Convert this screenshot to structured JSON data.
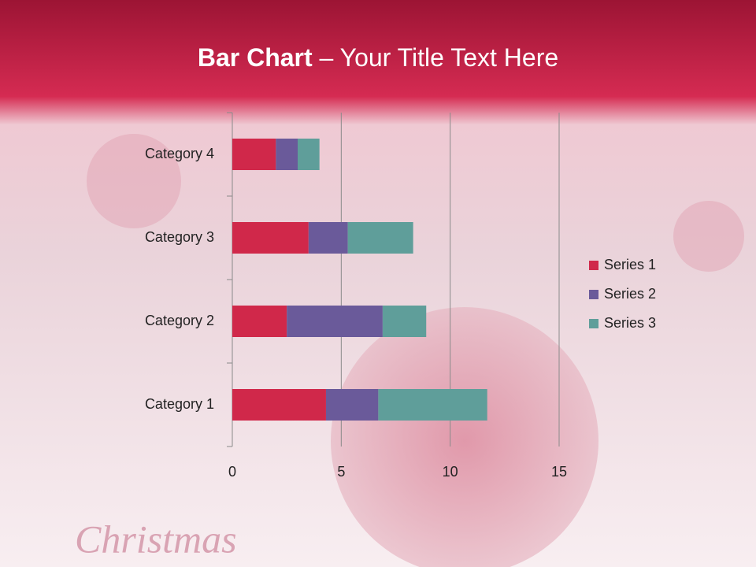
{
  "slide": {
    "title_bold": "Bar Chart",
    "title_rest": "– Your Title Text Here",
    "watermark": "Christmas"
  },
  "chart_data": {
    "type": "stacked-barh",
    "categories": [
      "Category 1",
      "Category 2",
      "Category 3",
      "Category 4"
    ],
    "series": [
      {
        "name": "Series 1",
        "color": "#d0284a",
        "values": [
          4.3,
          2.5,
          3.5,
          2
        ]
      },
      {
        "name": "Series 2",
        "color": "#6a5a9a",
        "values": [
          2.4,
          4.4,
          1.8,
          1
        ]
      },
      {
        "name": "Series 3",
        "color": "#5f9e9a",
        "values": [
          5,
          2,
          3,
          1
        ]
      }
    ],
    "xlim": [
      0,
      15
    ],
    "xticks": [
      0,
      5,
      10,
      15
    ],
    "grid": true,
    "legend": "right"
  }
}
